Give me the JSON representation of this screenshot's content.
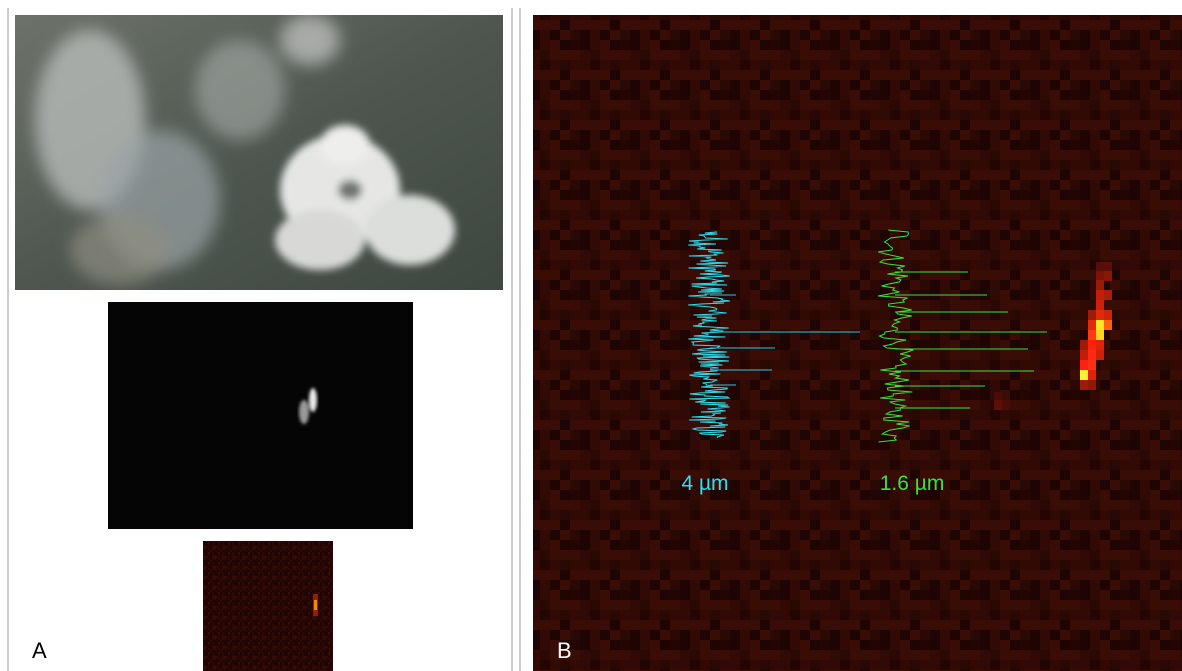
{
  "panels": [
    {
      "label": "A"
    },
    {
      "label": "B"
    }
  ],
  "spectra": [
    {
      "label": "4 µm"
    },
    {
      "label": "1.6 µm"
    }
  ]
}
